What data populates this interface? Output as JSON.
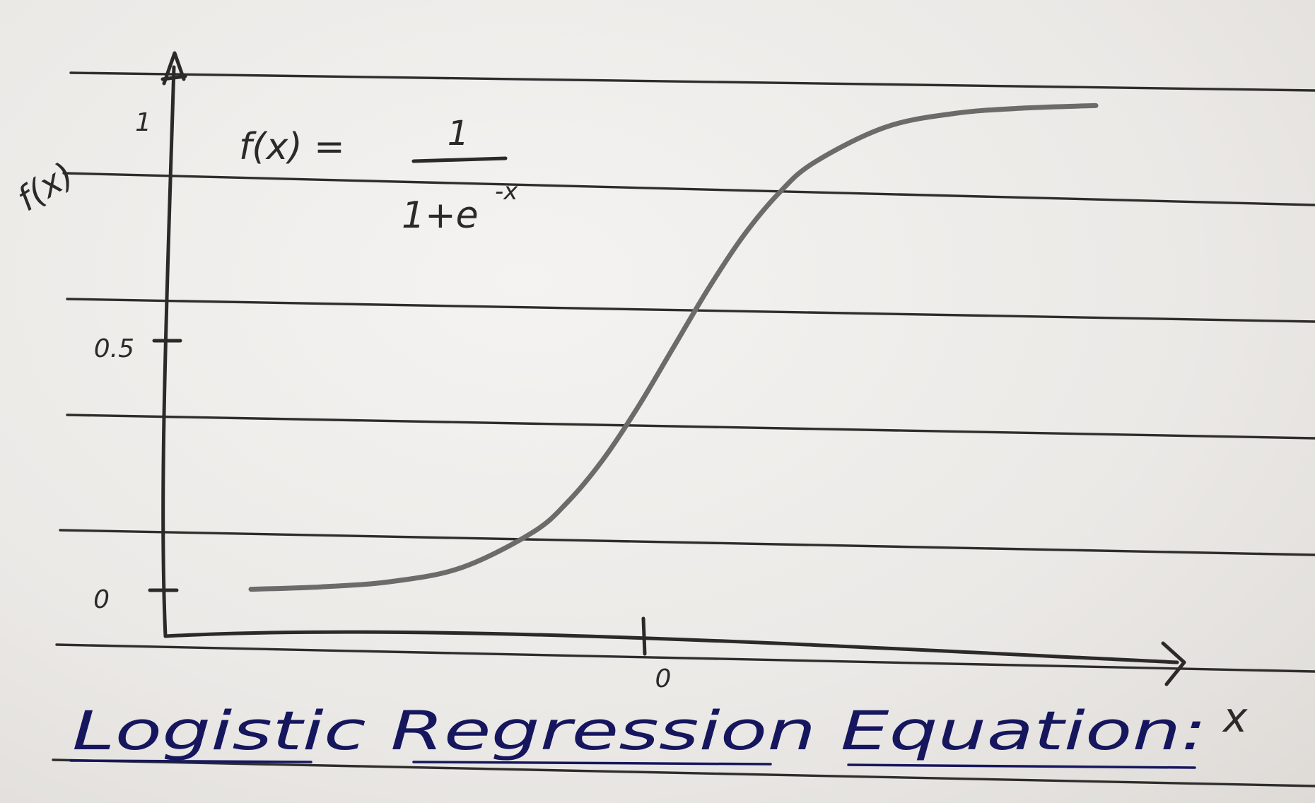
{
  "chart_data": {
    "type": "line",
    "title": "Logistic Regression Equation:",
    "xlabel": "x",
    "ylabel": "f(x)",
    "equation": {
      "lhs": "f(x) =",
      "numerator": "1",
      "denominator": "1+e",
      "exponent": "-x"
    },
    "x_tick_labels": [
      "0"
    ],
    "y_tick_labels": [
      "0",
      "0.5",
      "1"
    ],
    "xlim": [
      -6,
      6
    ],
    "ylim": [
      0,
      1
    ],
    "grid": false,
    "legend": "none",
    "series": [
      {
        "x": [
          -6,
          -5,
          -4,
          -3,
          -2,
          -1.5,
          -1,
          -0.5,
          0,
          0.5,
          1,
          1.5,
          2,
          3,
          4,
          5,
          6
        ],
        "y": [
          0.002,
          0.007,
          0.018,
          0.047,
          0.119,
          0.182,
          0.269,
          0.378,
          0.5,
          0.622,
          0.731,
          0.818,
          0.881,
          0.953,
          0.982,
          0.993,
          0.998
        ]
      }
    ],
    "colors": {
      "curve": "#6d6b69",
      "pencil": "#2b2a29",
      "ink": "#16165e",
      "paper": "#efeeeb"
    }
  }
}
